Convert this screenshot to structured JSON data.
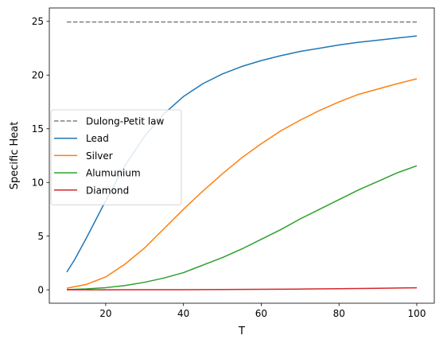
{
  "chart_data": {
    "type": "line",
    "title": "",
    "xlabel": "T",
    "ylabel": "Specific Heat",
    "xlim": [
      5.5,
      104.5
    ],
    "ylim": [
      -1.25,
      26.25
    ],
    "xticks": [
      20,
      40,
      60,
      80,
      100
    ],
    "yticks": [
      0,
      5,
      10,
      15,
      20,
      25
    ],
    "grid": false,
    "legend_position": "center-left",
    "series": [
      {
        "name": "Dulong-Petit law",
        "color": "#7f7f7f",
        "dash": true,
        "x": [
          10,
          100
        ],
        "y": [
          24.94,
          24.94
        ]
      },
      {
        "name": "Lead",
        "color": "#1f77b4",
        "dash": false,
        "x": [
          10,
          12,
          15,
          20,
          25,
          30,
          35,
          40,
          45,
          50,
          55,
          60,
          65,
          70,
          75,
          80,
          85,
          90,
          95,
          100
        ],
        "y": [
          1.65,
          2.8,
          4.8,
          8.3,
          11.6,
          14.3,
          16.4,
          18.0,
          19.2,
          20.1,
          20.8,
          21.35,
          21.8,
          22.2,
          22.5,
          22.8,
          23.05,
          23.25,
          23.45,
          23.65
        ]
      },
      {
        "name": "Silver",
        "color": "#ff7f0e",
        "dash": false,
        "x": [
          10,
          15,
          20,
          25,
          30,
          35,
          40,
          45,
          50,
          55,
          60,
          65,
          70,
          75,
          80,
          85,
          90,
          95,
          100
        ],
        "y": [
          0.15,
          0.5,
          1.2,
          2.4,
          3.9,
          5.7,
          7.5,
          9.2,
          10.8,
          12.3,
          13.6,
          14.8,
          15.8,
          16.7,
          17.5,
          18.2,
          18.7,
          19.2,
          19.65
        ]
      },
      {
        "name": "Alumunium",
        "color": "#2ca02c",
        "dash": false,
        "x": [
          10,
          15,
          20,
          25,
          30,
          35,
          40,
          45,
          50,
          55,
          60,
          65,
          70,
          75,
          80,
          85,
          90,
          95,
          100
        ],
        "y": [
          0.02,
          0.08,
          0.2,
          0.4,
          0.7,
          1.1,
          1.6,
          2.3,
          3.0,
          3.8,
          4.7,
          5.6,
          6.6,
          7.5,
          8.4,
          9.3,
          10.1,
          10.9,
          11.55
        ]
      },
      {
        "name": "Diamond",
        "color": "#d62728",
        "dash": false,
        "x": [
          10,
          20,
          30,
          40,
          50,
          60,
          70,
          80,
          90,
          100
        ],
        "y": [
          0.0,
          0.002,
          0.006,
          0.013,
          0.025,
          0.045,
          0.07,
          0.1,
          0.14,
          0.19
        ]
      }
    ]
  }
}
